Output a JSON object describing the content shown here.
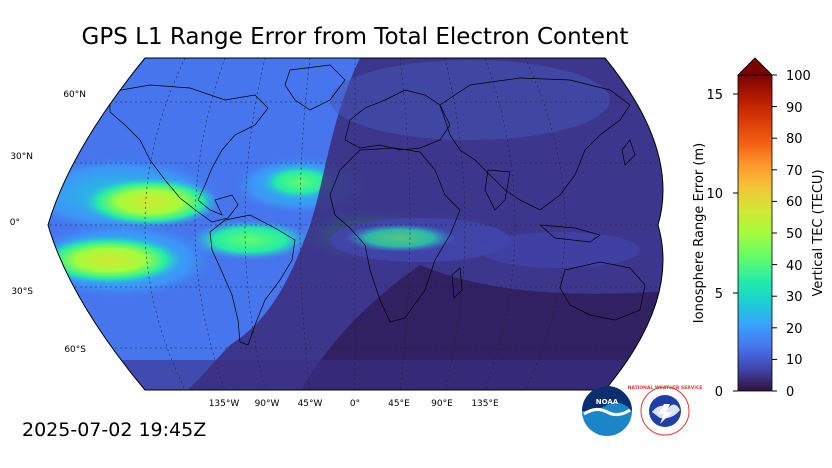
{
  "title": "GPS L1 Range Error from Total Electron Content",
  "timestamp": "2025-07-02 19:45Z",
  "map": {
    "projection": "robinson",
    "lat_labels": [
      "60°N",
      "30°N",
      "0°",
      "30°S",
      "60°S"
    ],
    "lon_labels": [
      "135°W",
      "90°W",
      "45°W",
      "0°",
      "45°E",
      "90°E",
      "135°E"
    ],
    "gridline_style": "dashed",
    "night_side": "east (Africa, Europe, Asia, Indian Ocean, Australia)"
  },
  "colorbar": {
    "left_axis_label": "Ionosphere Range Error (m)",
    "left_ticks": [
      "0",
      "5",
      "10",
      "15"
    ],
    "right_axis_label": "Vertical TEC (TECU)",
    "right_ticks": [
      "0",
      "10",
      "20",
      "30",
      "40",
      "50",
      "60",
      "70",
      "80",
      "90",
      "100"
    ],
    "extend": "max",
    "colors": [
      "#30123b",
      "#4145ab",
      "#4675ed",
      "#39a2fc",
      "#1bcfd4",
      "#24eca6",
      "#61fc6c",
      "#a4fc3b",
      "#d1e834",
      "#f3c63a",
      "#fe9b2d",
      "#f36315",
      "#d93806",
      "#b11901",
      "#7a0402"
    ]
  },
  "logos": {
    "noaa": "NOAA",
    "nws": "NATIONAL WEATHER SERVICE"
  }
}
